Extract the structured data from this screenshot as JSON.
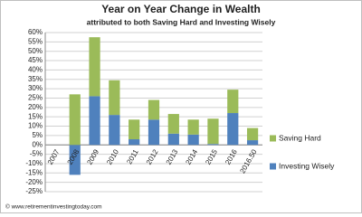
{
  "chart_data": {
    "type": "stacked_bar",
    "title": "Year on Year Change in Wealth",
    "subtitle": "attributed to both Saving Hard and Investing Wisely",
    "footer": "© www.retirementinvestingtoday.com",
    "categories": [
      "2007",
      "2008",
      "2009",
      "2010",
      "2011",
      "2012",
      "2013",
      "2014",
      "2015",
      "2016",
      "2016.50"
    ],
    "series": [
      {
        "name": "Investing Wisely",
        "color": "#4f81bd",
        "values": [
          0,
          -16,
          26,
          16,
          3,
          13.5,
          6,
          5.5,
          0.5,
          17,
          2.5
        ]
      },
      {
        "name": "Saving Hard",
        "color": "#9bbb59",
        "values": [
          0,
          27,
          31.5,
          18.5,
          10.5,
          10.5,
          10.5,
          8,
          13.5,
          12.5,
          6.5
        ]
      }
    ],
    "ylim": [
      -25,
      60
    ],
    "yticks": [
      {
        "value": -25,
        "label": "-25%"
      },
      {
        "value": -20,
        "label": "-20%"
      },
      {
        "value": -15,
        "label": "-15%"
      },
      {
        "value": -10,
        "label": "-10%"
      },
      {
        "value": -5,
        "label": "-5%"
      },
      {
        "value": 0,
        "label": "0%"
      },
      {
        "value": 5,
        "label": "5%"
      },
      {
        "value": 10,
        "label": "10%"
      },
      {
        "value": 15,
        "label": "15%"
      },
      {
        "value": 20,
        "label": "20%"
      },
      {
        "value": 25,
        "label": "25%"
      },
      {
        "value": 30,
        "label": "30%"
      },
      {
        "value": 35,
        "label": "35%"
      },
      {
        "value": 40,
        "label": "40%"
      },
      {
        "value": 45,
        "label": "45%"
      },
      {
        "value": 50,
        "label": "50%"
      },
      {
        "value": 55,
        "label": "55%"
      },
      {
        "value": 60,
        "label": "60%"
      }
    ],
    "grid": true,
    "legend": "right"
  }
}
